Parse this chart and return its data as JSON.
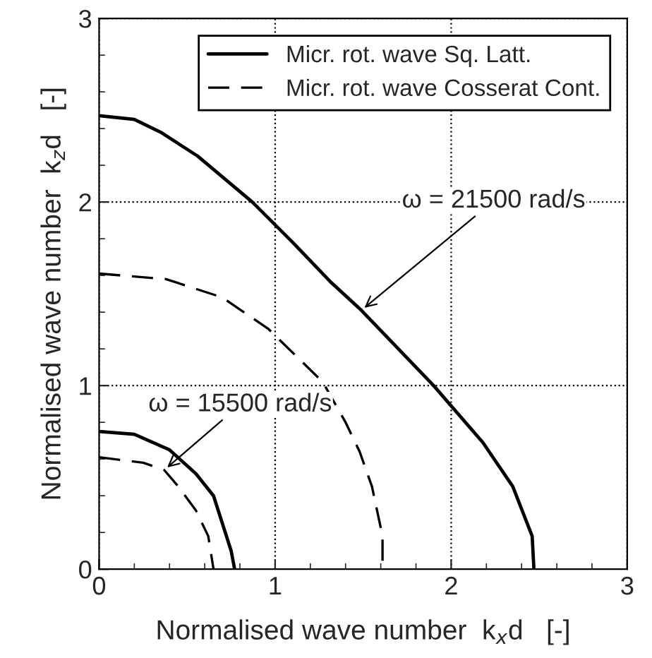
{
  "chart_data": {
    "type": "line",
    "xlabel": "Normalised wave number  k$_{x}$d   [-]",
    "ylabel": "Normalised wave number  k$_{z}$d   [-]",
    "xlim": [
      0,
      3
    ],
    "ylim": [
      0,
      3
    ],
    "xticks": [
      0,
      1,
      2,
      3
    ],
    "yticks": [
      0,
      1,
      2,
      3
    ],
    "grid": true,
    "legend": "top right",
    "marker": "none",
    "series": [
      {
        "name": "Micr. rot. wave Sq. Latt.",
        "color": "#000000",
        "line_style": "solid",
        "x": [
          0,
          0.2,
          0.35,
          0.56,
          0.87,
          1.1,
          1.32,
          1.49,
          1.9,
          2.18,
          2.35,
          2.46,
          2.47
        ],
        "values": [
          2.47,
          2.45,
          2.38,
          2.25,
          2.0,
          1.78,
          1.56,
          1.41,
          1.0,
          0.69,
          0.45,
          0.18,
          0
        ]
      },
      {
        "name": "Micr. rot. wave Cosserat Cont.",
        "color": "#000000",
        "line_style": "dashed",
        "x": [
          0,
          0.38,
          0.7,
          0.96,
          1.27,
          1.4,
          1.48,
          1.55,
          1.61,
          1.61
        ],
        "values": [
          1.61,
          1.58,
          1.48,
          1.31,
          1.02,
          0.8,
          0.64,
          0.45,
          0.18,
          0
        ]
      },
      {
        "color": "#000000",
        "line_style": "solid",
        "x": [
          0,
          0.2,
          0.4,
          0.55,
          0.65,
          0.75,
          0.77
        ],
        "values": [
          0.75,
          0.735,
          0.65,
          0.52,
          0.4,
          0.1,
          0
        ]
      },
      {
        "color": "#000000",
        "line_style": "dashed",
        "x": [
          0,
          0.25,
          0.37,
          0.45,
          0.55,
          0.62,
          0.65
        ],
        "values": [
          0.61,
          0.58,
          0.54,
          0.45,
          0.32,
          0.18,
          0
        ]
      }
    ],
    "annotations": [
      {
        "text": "ω = 21500 rad/s",
        "x": 1.49,
        "y": 1.41
      },
      {
        "text": "ω = 15500 rad/s",
        "x": 0.37,
        "y": 0.54
      }
    ]
  }
}
